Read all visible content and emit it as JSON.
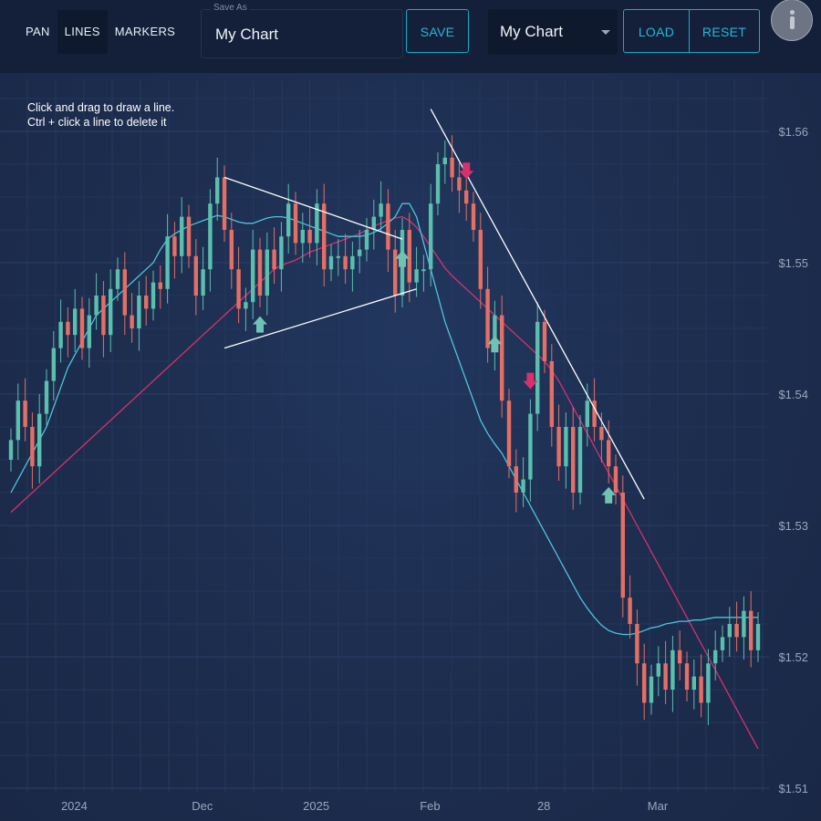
{
  "toolbar": {
    "modes": [
      "PAN",
      "LINES",
      "MARKERS"
    ],
    "active_mode": "LINES",
    "save_as_label": "Save As",
    "save_as_value": "My Chart",
    "save_label": "SAVE",
    "selected_chart": "My Chart",
    "load_label": "LOAD",
    "reset_label": "RESET",
    "info_icon": "info-icon"
  },
  "hint": {
    "line1": "Click and drag to draw a line.",
    "line2": "Ctrl + click a line to delete it"
  },
  "colors": {
    "background": "#1b2844",
    "up": "#5bbfae",
    "down": "#e46f65",
    "ma_fast": "#4fc3dd",
    "ma_slow": "#d6326e",
    "marker_buy": "#6ec3b3",
    "marker_sell": "#d6326e",
    "trendline": "#ffffff",
    "accent": "#27b6d7"
  },
  "chart_data": {
    "type": "candlestick",
    "x_ticks": [
      {
        "label": "2024",
        "i": 8
      },
      {
        "label": "Dec",
        "i": 26
      },
      {
        "label": "2025",
        "i": 42
      },
      {
        "label": "Feb",
        "i": 58
      },
      {
        "label": "28",
        "i": 74
      },
      {
        "label": "Mar",
        "i": 90
      }
    ],
    "y_ticks": [
      1.51,
      1.52,
      1.53,
      1.54,
      1.55,
      1.56
    ],
    "y_tick_labels": [
      "$1.51",
      "$1.52",
      "$1.53",
      "$1.54",
      "$1.55",
      "$1.56"
    ],
    "ylim": [
      1.51,
      1.563
    ],
    "close": [
      1.5365,
      1.5395,
      1.5375,
      1.5345,
      1.5385,
      1.541,
      1.5435,
      1.5455,
      1.5445,
      1.5465,
      1.5435,
      1.546,
      1.5475,
      1.5445,
      1.548,
      1.5495,
      1.546,
      1.545,
      1.5475,
      1.5465,
      1.5485,
      1.548,
      1.552,
      1.5505,
      1.5535,
      1.5505,
      1.5475,
      1.5495,
      1.5545,
      1.5565,
      1.5525,
      1.5495,
      1.5465,
      1.547,
      1.551,
      1.5475,
      1.551,
      1.5495,
      1.552,
      1.5545,
      1.5515,
      1.5525,
      1.5515,
      1.5545,
      1.5495,
      1.5505,
      1.5505,
      1.5495,
      1.5505,
      1.551,
      1.5525,
      1.5535,
      1.5545,
      1.551,
      1.5475,
      1.5525,
      1.5485,
      1.5495,
      1.5495,
      1.5545,
      1.5575,
      1.558,
      1.5565,
      1.5555,
      1.5545,
      1.5525,
      1.548,
      1.5435,
      1.546,
      1.5395,
      1.5345,
      1.5325,
      1.5335,
      1.5385,
      1.5455,
      1.5425,
      1.5375,
      1.5345,
      1.5375,
      1.5325,
      1.5375,
      1.5395,
      1.5375,
      1.5365,
      1.5345,
      1.5325,
      1.5245,
      1.5225,
      1.5195,
      1.5165,
      1.5185,
      1.5195,
      1.5175,
      1.5205,
      1.5195,
      1.5175,
      1.5185,
      1.5165,
      1.5195,
      1.5205,
      1.5215,
      1.5225,
      1.5215,
      1.5235,
      1.5205,
      1.5225
    ],
    "ma_fast": [
      1.5325,
      1.5335,
      1.5345,
      1.5355,
      1.5365,
      1.5375,
      1.539,
      1.5405,
      1.542,
      1.543,
      1.544,
      1.545,
      1.546,
      1.5465,
      1.547,
      1.5475,
      1.548,
      1.5485,
      1.549,
      1.5495,
      1.55,
      1.551,
      1.5518,
      1.5522,
      1.5525,
      1.5528,
      1.553,
      1.5532,
      1.5534,
      1.5536,
      1.5535,
      1.5533,
      1.5531,
      1.553,
      1.553,
      1.5532,
      1.5534,
      1.5535,
      1.5535,
      1.5534,
      1.5532,
      1.553,
      1.5528,
      1.5526,
      1.5524,
      1.5522,
      1.552,
      1.552,
      1.552,
      1.552,
      1.5521,
      1.5523,
      1.5526,
      1.553,
      1.5535,
      1.5545,
      1.5545,
      1.5535,
      1.5515,
      1.5495,
      1.5475,
      1.5455,
      1.544,
      1.5425,
      1.541,
      1.5395,
      1.538,
      1.537,
      1.5362,
      1.5355,
      1.5345,
      1.5335,
      1.5325,
      1.5315,
      1.5305,
      1.5295,
      1.5285,
      1.5275,
      1.5265,
      1.5255,
      1.5245,
      1.5237,
      1.523,
      1.5224,
      1.522,
      1.5218,
      1.5217,
      1.5217,
      1.5218,
      1.522,
      1.5222,
      1.5223,
      1.5225,
      1.5226,
      1.5227,
      1.5227,
      1.5228,
      1.5228,
      1.5229,
      1.523,
      1.523,
      1.523,
      1.523,
      1.523,
      1.523,
      1.523
    ],
    "ma_slow": [
      1.531,
      1.5315,
      1.532,
      1.5325,
      1.533,
      1.5335,
      1.534,
      1.5345,
      1.535,
      1.5355,
      1.536,
      1.5365,
      1.537,
      1.5375,
      1.538,
      1.5385,
      1.539,
      1.5395,
      1.54,
      1.5405,
      1.541,
      1.5415,
      1.542,
      1.5425,
      1.543,
      1.5435,
      1.544,
      1.5445,
      1.545,
      1.5455,
      1.546,
      1.5465,
      1.547,
      1.5475,
      1.548,
      1.5485,
      1.549,
      1.5495,
      1.5498,
      1.55,
      1.5502,
      1.5505,
      1.5508,
      1.551,
      1.5512,
      1.5514,
      1.5516,
      1.5518,
      1.552,
      1.5522,
      1.5525,
      1.5528,
      1.553,
      1.5532,
      1.5534,
      1.5535,
      1.5532,
      1.5527,
      1.552,
      1.5512,
      1.5504,
      1.5496,
      1.549,
      1.5485,
      1.548,
      1.5475,
      1.547,
      1.5465,
      1.546,
      1.5455,
      1.545,
      1.5445,
      1.544,
      1.5435,
      1.543,
      1.5425,
      1.5418,
      1.541,
      1.54,
      1.539,
      1.538,
      1.537,
      1.536,
      1.535,
      1.534,
      1.533,
      1.532,
      1.531,
      1.53,
      1.529,
      1.528,
      1.527,
      1.526,
      1.525,
      1.524,
      1.523,
      1.522,
      1.521,
      1.52,
      1.519,
      1.518,
      1.517,
      1.516,
      1.515,
      1.514,
      1.513
    ],
    "markers": [
      {
        "i": 35,
        "type": "buy"
      },
      {
        "i": 55,
        "type": "buy"
      },
      {
        "i": 64,
        "type": "sell"
      },
      {
        "i": 68,
        "type": "buy"
      },
      {
        "i": 73,
        "type": "sell"
      },
      {
        "i": 84,
        "type": "buy"
      }
    ],
    "trendlines": [
      {
        "from": {
          "i": 30,
          "v": 1.5565
        },
        "to": {
          "i": 55,
          "v": 1.5518
        }
      },
      {
        "from": {
          "i": 30,
          "v": 1.5435
        },
        "to": {
          "i": 57,
          "v": 1.548
        }
      },
      {
        "from": {
          "i": 59,
          "v": 1.5617
        },
        "to": {
          "i": 89,
          "v": 1.532
        }
      }
    ]
  }
}
